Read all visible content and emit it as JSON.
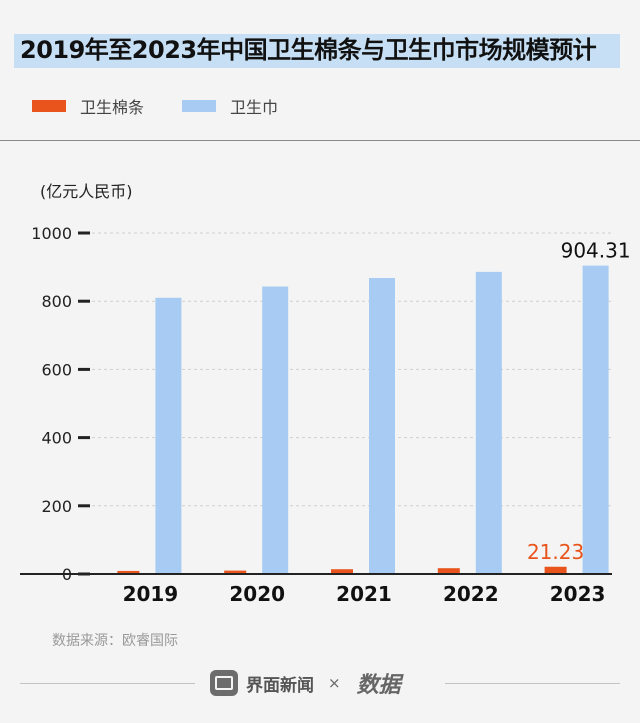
{
  "title": "2019年至2023年中国卫生棉条与卫生巾市场规模预计",
  "unit_label": "(亿元人民币)",
  "source": "数据来源：欧睿国际",
  "footer": {
    "brand": "界面新闻",
    "separator": "×",
    "partner": "数据"
  },
  "colors": {
    "tampon": "#e8541c",
    "pad": "#a7cbf2",
    "title_highlight": "#c6dff4",
    "tampon_label": "#e8541c"
  },
  "chart_data": {
    "type": "bar",
    "title": "2019年至2023年中国卫生棉条与卫生巾市场规模预计",
    "ylabel": "(亿元人民币)",
    "ylim": [
      0,
      1000
    ],
    "yticks": [
      0,
      200,
      400,
      600,
      800,
      1000
    ],
    "grid": true,
    "legend_position": "top-left",
    "categories": [
      "2019",
      "2020",
      "2021",
      "2022",
      "2023"
    ],
    "series": [
      {
        "name": "卫生棉条",
        "values": [
          9,
          10,
          14,
          17,
          21.23
        ]
      },
      {
        "name": "卫生巾",
        "values": [
          810,
          843,
          868,
          886,
          904.31
        ]
      }
    ],
    "annotations": [
      {
        "series": "卫生棉条",
        "category": "2023",
        "text": "21.23"
      },
      {
        "series": "卫生巾",
        "category": "2023",
        "text": "904.31"
      }
    ]
  }
}
